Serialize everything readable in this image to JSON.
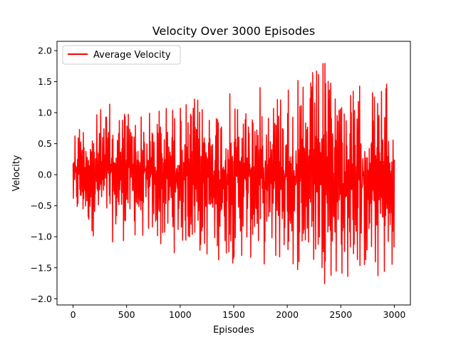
{
  "chart_data": {
    "type": "line",
    "title": "Velocity Over 3000 Episodes",
    "xlabel": "Episodes",
    "ylabel": "Velocity",
    "xlim": [
      -150,
      3150
    ],
    "ylim": [
      -2.1,
      2.15
    ],
    "xticks": [
      0,
      500,
      1000,
      1500,
      2000,
      2500,
      3000
    ],
    "yticks": [
      -2.0,
      -1.5,
      -1.0,
      -0.5,
      0.0,
      0.5,
      1.0,
      1.5,
      2.0
    ],
    "xtick_labels": [
      "0",
      "500",
      "1000",
      "1500",
      "2000",
      "2500",
      "3000"
    ],
    "ytick_labels": [
      "−2.0",
      "−1.5",
      "−1.0",
      "−0.5",
      "0.0",
      "0.5",
      "1.0",
      "1.5",
      "2.0"
    ],
    "grid": false,
    "legend_position": "top-left",
    "series": [
      {
        "name": "Average Velocity",
        "color": "#ff0000",
        "x": [
          0,
          100,
          200,
          300,
          400,
          500,
          600,
          700,
          800,
          900,
          1000,
          1100,
          1200,
          1300,
          1400,
          1500,
          1600,
          1700,
          1800,
          1900,
          2000,
          2100,
          2200,
          2300,
          2400,
          2500,
          2600,
          2700,
          2800,
          2900,
          3000
        ],
        "envelope_max": [
          0.97,
          1.04,
          1.04,
          1.22,
          1.2,
          1.33,
          1.13,
          1.1,
          1.3,
          1.28,
          1.25,
          1.32,
          1.34,
          1.37,
          1.37,
          1.38,
          1.38,
          1.45,
          1.57,
          1.62,
          1.79,
          1.56,
          1.67,
          1.97,
          1.91,
          1.82,
          1.51,
          1.6,
          1.62,
          1.74,
          1.13
        ],
        "envelope_min": [
          -0.88,
          -0.93,
          -1.05,
          -1.06,
          -1.18,
          -1.12,
          -1.13,
          -1.14,
          -1.33,
          -1.32,
          -1.3,
          -1.32,
          -1.48,
          -1.47,
          -1.44,
          -1.5,
          -1.47,
          -1.5,
          -1.57,
          -1.65,
          -1.63,
          -1.65,
          -1.72,
          -1.73,
          -1.84,
          -1.91,
          -1.77,
          -1.74,
          -1.88,
          -1.91,
          -1.78
        ]
      }
    ]
  }
}
